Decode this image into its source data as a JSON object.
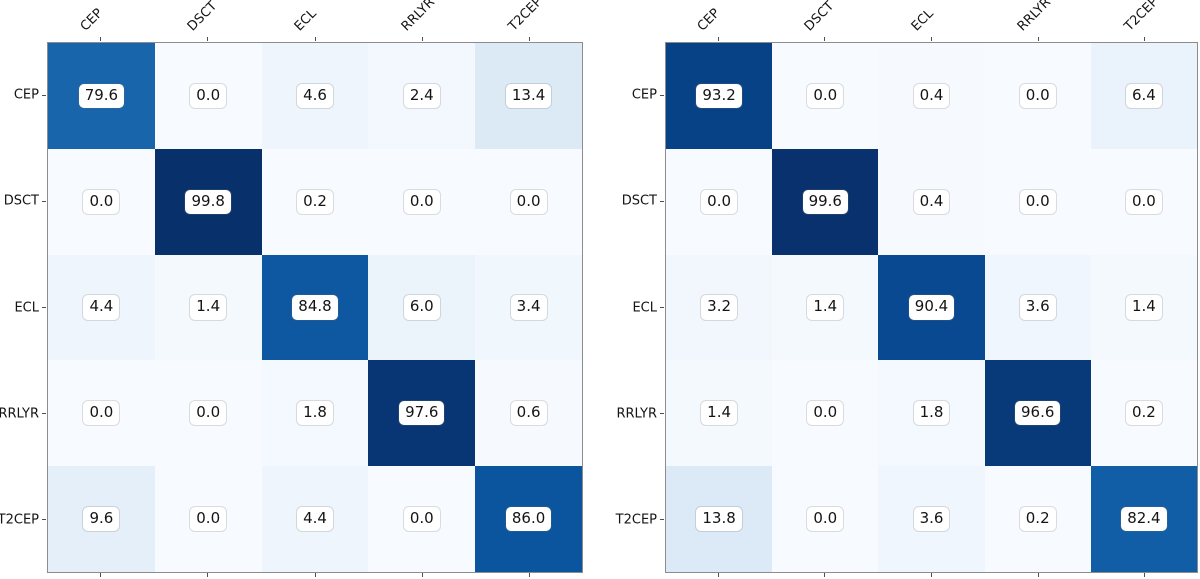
{
  "figure": {
    "background": "#ffffff",
    "text_color": "#141414",
    "spine_color": "#8c8c8c",
    "annotation_box_color": "#ffffff"
  },
  "chart_data": [
    {
      "type": "heatmap",
      "panel": "left",
      "title": "",
      "xlabel": "",
      "ylabel": "",
      "x_tick_labels": [
        "CEP",
        "DSCT",
        "ECL",
        "RRLYR",
        "T2CEP"
      ],
      "y_tick_labels": [
        "CEP",
        "DSCT",
        "ECL",
        "RRLYR",
        "T2CEP"
      ],
      "rows": [
        [
          79.6,
          0.0,
          4.6,
          2.4,
          13.4
        ],
        [
          0.0,
          99.8,
          0.2,
          0.0,
          0.0
        ],
        [
          4.4,
          1.4,
          84.8,
          6.0,
          3.4
        ],
        [
          0.0,
          0.0,
          1.8,
          97.6,
          0.6
        ],
        [
          9.6,
          0.0,
          4.4,
          0.0,
          86.0
        ]
      ],
      "vmin": 0,
      "vmax": 100,
      "colormap": "Blues",
      "x_labels_position": "top",
      "x_labels_rotation_deg": 45,
      "colorbar": false,
      "grid": false
    },
    {
      "type": "heatmap",
      "panel": "right",
      "title": "",
      "xlabel": "",
      "ylabel": "",
      "x_tick_labels": [
        "CEP",
        "DSCT",
        "ECL",
        "RRLYR",
        "T2CEP"
      ],
      "y_tick_labels": [
        "CEP",
        "DSCT",
        "ECL",
        "RRLYR",
        "T2CEP"
      ],
      "rows": [
        [
          93.2,
          0.0,
          0.4,
          0.0,
          6.4
        ],
        [
          0.0,
          99.6,
          0.4,
          0.0,
          0.0
        ],
        [
          3.2,
          1.4,
          90.4,
          3.6,
          1.4
        ],
        [
          1.4,
          0.0,
          1.8,
          96.6,
          0.2
        ],
        [
          13.8,
          0.0,
          3.6,
          0.2,
          82.4
        ]
      ],
      "vmin": 0,
      "vmax": 100,
      "colormap": "Blues",
      "x_labels_position": "top",
      "x_labels_rotation_deg": 45,
      "colorbar": false,
      "grid": false
    }
  ],
  "colormap_stops": [
    [
      0.0,
      "#f7fbff"
    ],
    [
      0.125,
      "#deebf7"
    ],
    [
      0.25,
      "#c6dbef"
    ],
    [
      0.375,
      "#9ecae1"
    ],
    [
      0.5,
      "#6baed6"
    ],
    [
      0.625,
      "#4292c6"
    ],
    [
      0.75,
      "#2171b5"
    ],
    [
      0.875,
      "#08519c"
    ],
    [
      1.0,
      "#08306b"
    ]
  ]
}
